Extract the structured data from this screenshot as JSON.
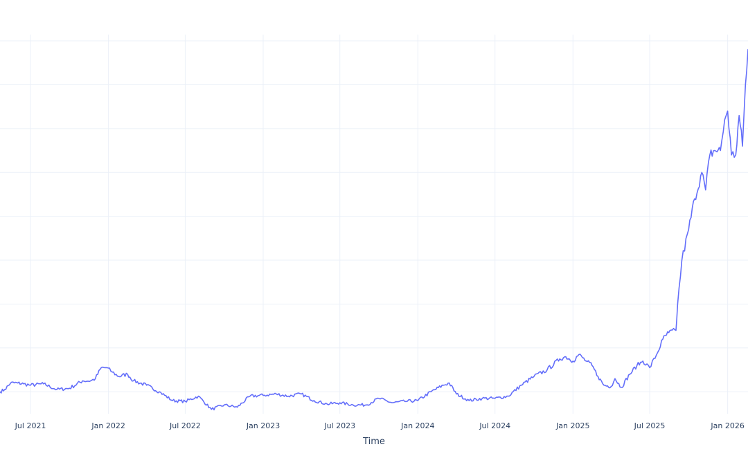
{
  "chart_data": {
    "type": "line",
    "title": "",
    "xlabel": "Time",
    "ylabel": "",
    "x_ticks": [
      {
        "date": "2021-07-01",
        "label": "Jul 2021"
      },
      {
        "date": "2022-01-01",
        "label": "Jan 2022"
      },
      {
        "date": "2022-07-01",
        "label": "Jul 2022"
      },
      {
        "date": "2023-01-01",
        "label": "Jan 2023"
      },
      {
        "date": "2023-07-01",
        "label": "Jul 2023"
      },
      {
        "date": "2024-01-01",
        "label": "Jan 2024"
      },
      {
        "date": "2024-07-01",
        "label": "Jul 2024"
      },
      {
        "date": "2025-01-01",
        "label": "Jan 2025"
      },
      {
        "date": "2025-07-01",
        "label": "Jul 2025"
      },
      {
        "date": "2026-01-01",
        "label": "Jan 2026"
      }
    ],
    "xlim": [
      "2021-04-20",
      "2026-02-18"
    ],
    "ylim": [
      0.0,
      8.2
    ],
    "y_gridlines": [
      0.5,
      1.5,
      2.5,
      3.5,
      4.5,
      5.5,
      6.5,
      7.5,
      8.5
    ],
    "grid": true,
    "legend": "none",
    "series": [
      {
        "color": "#636efa",
        "x": [
          "2021-04-20",
          "2021-05-01",
          "2021-05-15",
          "2021-06-01",
          "2021-06-15",
          "2021-07-01",
          "2021-08-01",
          "2021-09-01",
          "2021-10-01",
          "2021-11-01",
          "2021-11-20",
          "2021-12-01",
          "2021-12-15",
          "2021-12-28",
          "2022-01-10",
          "2022-01-25",
          "2022-02-15",
          "2022-03-01",
          "2022-04-01",
          "2022-05-01",
          "2022-06-01",
          "2022-07-01",
          "2022-08-01",
          "2022-09-01",
          "2022-10-01",
          "2022-11-01",
          "2022-12-01",
          "2023-01-01",
          "2023-02-01",
          "2023-03-01",
          "2023-04-01",
          "2023-05-01",
          "2023-06-01",
          "2023-07-01",
          "2023-08-01",
          "2023-09-01",
          "2023-10-01",
          "2023-11-01",
          "2023-12-01",
          "2024-01-01",
          "2024-02-01",
          "2024-03-01",
          "2024-03-15",
          "2024-04-01",
          "2024-05-01",
          "2024-06-01",
          "2024-07-01",
          "2024-08-01",
          "2024-09-01",
          "2024-10-01",
          "2024-11-01",
          "2024-12-01",
          "2024-12-15",
          "2025-01-01",
          "2025-01-15",
          "2025-02-01",
          "2025-02-15",
          "2025-03-01",
          "2025-03-15",
          "2025-04-01",
          "2025-04-10",
          "2025-04-25",
          "2025-05-15",
          "2025-06-01",
          "2025-06-15",
          "2025-07-01",
          "2025-07-20",
          "2025-08-01",
          "2025-08-15",
          "2025-09-01",
          "2025-09-05",
          "2025-09-15",
          "2025-10-01",
          "2025-10-15",
          "2025-11-01",
          "2025-11-10",
          "2025-11-20",
          "2025-12-01",
          "2025-12-15",
          "2025-12-25",
          "2026-01-01",
          "2026-01-10",
          "2026-01-20",
          "2026-01-28",
          "2026-02-05",
          "2026-02-12",
          "2026-02-18"
        ],
        "y": [
          0.5,
          0.55,
          0.7,
          0.7,
          0.68,
          0.65,
          0.68,
          0.55,
          0.58,
          0.75,
          0.75,
          0.8,
          1.05,
          1.05,
          0.95,
          0.85,
          0.9,
          0.75,
          0.65,
          0.5,
          0.3,
          0.28,
          0.4,
          0.1,
          0.2,
          0.15,
          0.4,
          0.42,
          0.45,
          0.4,
          0.45,
          0.3,
          0.22,
          0.25,
          0.2,
          0.2,
          0.35,
          0.25,
          0.28,
          0.3,
          0.5,
          0.65,
          0.7,
          0.45,
          0.3,
          0.35,
          0.35,
          0.4,
          0.65,
          0.85,
          1.0,
          1.25,
          1.3,
          1.2,
          1.35,
          1.2,
          1.1,
          0.85,
          0.65,
          0.62,
          0.8,
          0.6,
          0.9,
          1.1,
          1.2,
          1.05,
          1.4,
          1.7,
          1.85,
          1.9,
          2.5,
          3.5,
          4.2,
          4.9,
          5.5,
          5.1,
          5.9,
          6.0,
          6.0,
          6.7,
          6.9,
          5.9,
          5.9,
          6.8,
          6.1,
          7.5,
          8.3
        ]
      }
    ]
  }
}
